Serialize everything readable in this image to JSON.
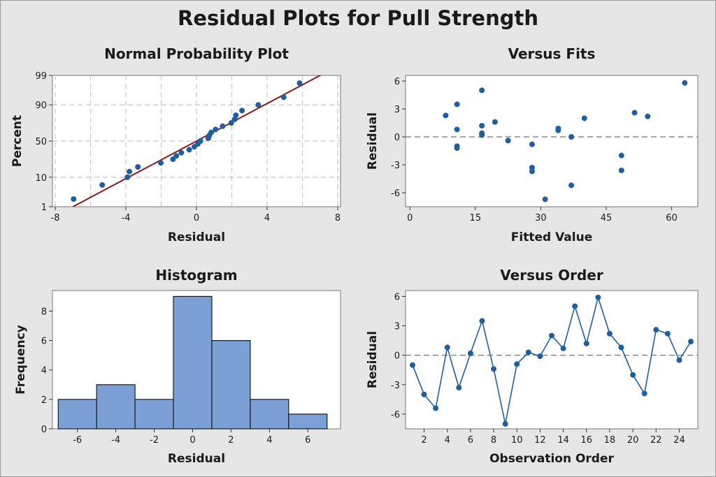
{
  "figure_title": "Residual Plots for Pull Strength",
  "colors": {
    "point": "#1f5fa0",
    "fit_line": "#8b1a1a",
    "histogram_bar": "#7ba0d6",
    "histogram_edge": "#1a1a1a",
    "grid": "#c8c8c8",
    "reference_line": "#888888"
  },
  "chart_data": [
    {
      "id": "normal_probability",
      "type": "scatter",
      "title": "Normal Probability Plot",
      "xlabel": "Residual",
      "ylabel": "Percent",
      "xlim": [
        -8,
        8
      ],
      "x_ticks": [
        -8,
        -4,
        0,
        4,
        8
      ],
      "y_ticks": [
        1,
        10,
        50,
        90,
        99
      ],
      "y_scale": "normal-probability",
      "grid": true,
      "fit_line": [
        [
          -7,
          1
        ],
        [
          7,
          99
        ]
      ],
      "points": [
        {
          "x": -6.96,
          "y": 2.0
        },
        {
          "x": -5.34,
          "y": 6.0
        },
        {
          "x": -3.91,
          "y": 10.0
        },
        {
          "x": -3.8,
          "y": 14.0
        },
        {
          "x": -3.32,
          "y": 18.0
        },
        {
          "x": -2.02,
          "y": 22.0
        },
        {
          "x": -1.33,
          "y": 26.0
        },
        {
          "x": -1.14,
          "y": 30.0
        },
        {
          "x": -0.86,
          "y": 34.0
        },
        {
          "x": -0.41,
          "y": 38.0
        },
        {
          "x": -0.12,
          "y": 42.0
        },
        {
          "x": 0.08,
          "y": 46.0
        },
        {
          "x": 0.22,
          "y": 50.0
        },
        {
          "x": 0.67,
          "y": 54.0
        },
        {
          "x": 0.73,
          "y": 58.0
        },
        {
          "x": 0.83,
          "y": 62.0
        },
        {
          "x": 1.08,
          "y": 66.0
        },
        {
          "x": 1.48,
          "y": 70.0
        },
        {
          "x": 1.97,
          "y": 74.0
        },
        {
          "x": 2.17,
          "y": 78.0
        },
        {
          "x": 2.23,
          "y": 82.0
        },
        {
          "x": 2.58,
          "y": 86.0
        },
        {
          "x": 3.5,
          "y": 90.0
        },
        {
          "x": 4.94,
          "y": 94.0
        },
        {
          "x": 5.84,
          "y": 98.0
        }
      ]
    },
    {
      "id": "versus_fits",
      "type": "scatter",
      "title": "Versus Fits",
      "xlabel": "Fitted Value",
      "ylabel": "Residual",
      "xlim": [
        -1,
        66
      ],
      "ylim": [
        -7.5,
        6.6
      ],
      "x_ticks": [
        0,
        15,
        30,
        45,
        60
      ],
      "y_ticks": [
        -6,
        -3,
        0,
        3,
        6
      ],
      "reference_line": 0,
      "points": [
        {
          "x": 8.2,
          "y": 2.3
        },
        {
          "x": 10.8,
          "y": 3.5
        },
        {
          "x": 10.8,
          "y": 0.8
        },
        {
          "x": 10.8,
          "y": -1.0
        },
        {
          "x": 10.8,
          "y": -1.2
        },
        {
          "x": 16.5,
          "y": 5.0
        },
        {
          "x": 16.5,
          "y": 1.2
        },
        {
          "x": 16.5,
          "y": 0.4
        },
        {
          "x": 16.5,
          "y": 0.2
        },
        {
          "x": 19.5,
          "y": 1.6
        },
        {
          "x": 22.5,
          "y": -0.4
        },
        {
          "x": 28.0,
          "y": -0.8
        },
        {
          "x": 28.0,
          "y": -3.3
        },
        {
          "x": 28.0,
          "y": -3.7
        },
        {
          "x": 31.0,
          "y": -6.7
        },
        {
          "x": 34.0,
          "y": 0.9
        },
        {
          "x": 34.0,
          "y": 0.7
        },
        {
          "x": 37.0,
          "y": 0.0
        },
        {
          "x": 37.0,
          "y": -5.2
        },
        {
          "x": 40.0,
          "y": 2.0
        },
        {
          "x": 48.5,
          "y": -2.0
        },
        {
          "x": 48.5,
          "y": -3.6
        },
        {
          "x": 51.5,
          "y": 2.6
        },
        {
          "x": 54.5,
          "y": 2.2
        },
        {
          "x": 63.0,
          "y": 5.8
        }
      ]
    },
    {
      "id": "histogram",
      "type": "bar",
      "title": "Histogram",
      "xlabel": "Residual",
      "ylabel": "Frequency",
      "xlim": [
        -7.3,
        7.7
      ],
      "ylim": [
        0,
        9.4
      ],
      "x_ticks": [
        -6,
        -4,
        -2,
        0,
        2,
        4,
        6
      ],
      "y_ticks": [
        0,
        2,
        4,
        6,
        8
      ],
      "bin_edges": [
        -7,
        -5,
        -3,
        -1,
        1,
        3,
        5,
        7
      ],
      "values": [
        2,
        3,
        2,
        9,
        6,
        2,
        1
      ]
    },
    {
      "id": "versus_order",
      "type": "line",
      "title": "Versus Order",
      "xlabel": "Observation Order",
      "ylabel": "Residual",
      "xlim": [
        0.4,
        25.6
      ],
      "ylim": [
        -7.5,
        6.6
      ],
      "x_ticks": [
        2,
        4,
        6,
        8,
        10,
        12,
        14,
        16,
        18,
        20,
        22,
        24
      ],
      "y_ticks": [
        -6,
        -3,
        0,
        3,
        6
      ],
      "reference_line": 0,
      "x": [
        1,
        2,
        3,
        4,
        5,
        6,
        7,
        8,
        9,
        10,
        11,
        12,
        13,
        14,
        15,
        16,
        17,
        18,
        19,
        20,
        21,
        22,
        23,
        24,
        25
      ],
      "values": [
        -1.0,
        -4.0,
        -5.4,
        0.8,
        -3.3,
        0.2,
        3.5,
        -1.4,
        -7.0,
        -0.9,
        0.3,
        -0.1,
        2.0,
        0.7,
        5.0,
        1.2,
        5.9,
        2.2,
        0.8,
        -2.0,
        -3.9,
        2.6,
        2.2,
        -0.5,
        1.4
      ]
    }
  ]
}
